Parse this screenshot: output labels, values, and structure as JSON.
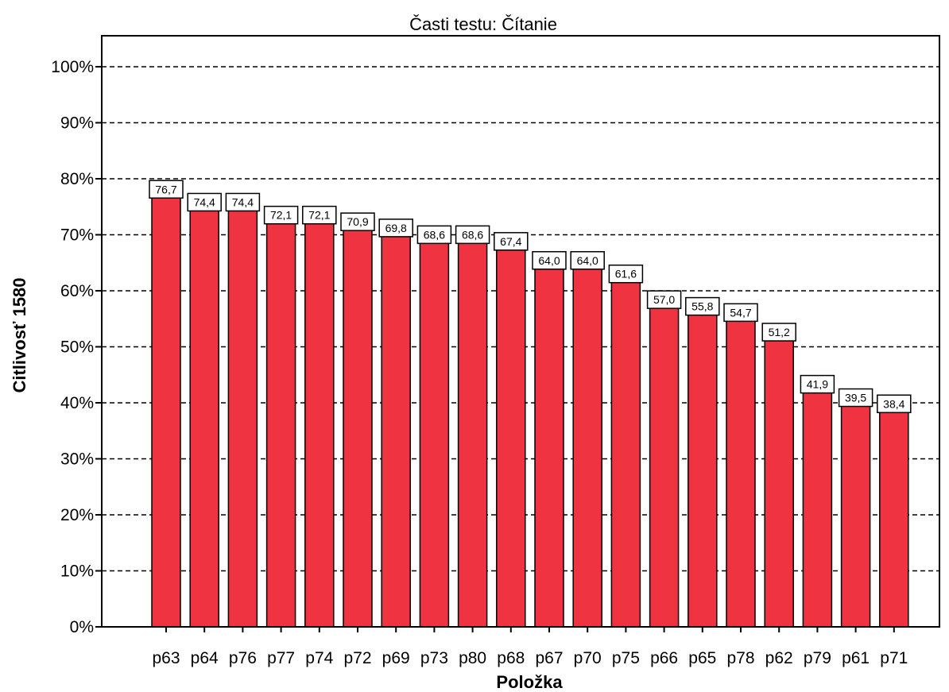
{
  "chart_data": {
    "type": "bar",
    "title": "Časti testu: Čítanie",
    "xlabel": "Položka",
    "ylabel": "Citlivosť 1580",
    "ylim": [
      0,
      100
    ],
    "yticks": [
      "0%",
      "10%",
      "20%",
      "30%",
      "40%",
      "50%",
      "60%",
      "70%",
      "80%",
      "90%",
      "100%"
    ],
    "grid": true,
    "bar_color": "#ef3340",
    "categories": [
      "p63",
      "p64",
      "p76",
      "p77",
      "p74",
      "p72",
      "p69",
      "p73",
      "p80",
      "p68",
      "p67",
      "p70",
      "p75",
      "p66",
      "p65",
      "p78",
      "p62",
      "p79",
      "p61",
      "p71"
    ],
    "values": [
      76.7,
      74.4,
      74.4,
      72.1,
      72.1,
      70.9,
      69.8,
      68.6,
      68.6,
      67.4,
      64.0,
      64.0,
      61.6,
      57.0,
      55.8,
      54.7,
      51.2,
      41.9,
      39.5,
      38.4
    ],
    "value_labels": [
      "76,7",
      "74,4",
      "74,4",
      "72,1",
      "72,1",
      "70,9",
      "69,8",
      "68,6",
      "68,6",
      "67,4",
      "64,0",
      "64,0",
      "61,6",
      "57,0",
      "55,8",
      "54,7",
      "51,2",
      "41,9",
      "39,5",
      "38,4"
    ]
  }
}
